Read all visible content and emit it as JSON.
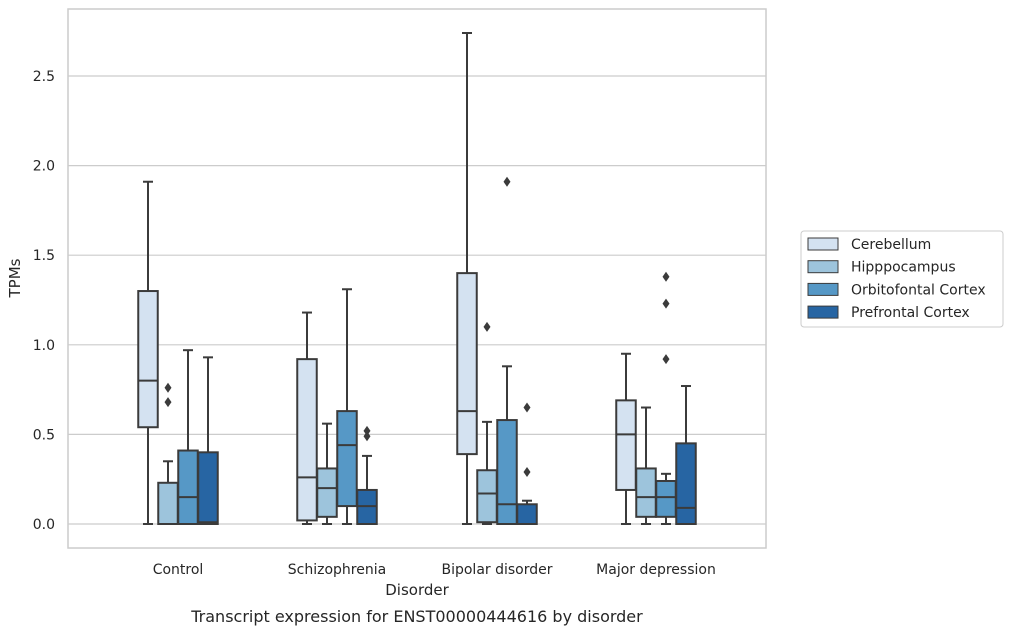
{
  "chart_data": {
    "type": "box",
    "xlabel": "Disorder",
    "ylabel": "TPMs",
    "caption": "Transcript expression for ENST00000444616 by disorder",
    "categories": [
      "Control",
      "Schizophrenia",
      "Bipolar disorder",
      "Major depression"
    ],
    "ylim": [
      -0.13,
      2.88
    ],
    "yticks": [
      0.0,
      0.5,
      1.0,
      1.5,
      2.0,
      2.5
    ],
    "ytick_labels": [
      "0.0",
      "0.5",
      "1.0",
      "1.5",
      "2.0",
      "2.5"
    ],
    "grid": true,
    "legend_position": "right",
    "series": [
      {
        "name": "Cerebellum",
        "color": "#d4e2f1",
        "boxes": [
          {
            "whislo": 0.0,
            "q1": 0.54,
            "med": 0.8,
            "q3": 1.3,
            "whishi": 1.91,
            "fliers": []
          },
          {
            "whislo": 0.0,
            "q1": 0.02,
            "med": 0.26,
            "q3": 0.92,
            "whishi": 1.18,
            "fliers": []
          },
          {
            "whislo": 0.0,
            "q1": 0.39,
            "med": 0.63,
            "q3": 1.4,
            "whishi": 2.74,
            "fliers": []
          },
          {
            "whislo": 0.0,
            "q1": 0.19,
            "med": 0.5,
            "q3": 0.69,
            "whishi": 0.95,
            "fliers": []
          }
        ]
      },
      {
        "name": "Hipppocampus",
        "color": "#9dc4dc",
        "boxes": [
          {
            "whislo": 0.0,
            "q1": 0.0,
            "med": 0.0,
            "q3": 0.23,
            "whishi": 0.35,
            "fliers": [
              0.68,
              0.76
            ]
          },
          {
            "whislo": 0.0,
            "q1": 0.04,
            "med": 0.2,
            "q3": 0.31,
            "whishi": 0.56,
            "fliers": []
          },
          {
            "whislo": 0.0,
            "q1": 0.01,
            "med": 0.17,
            "q3": 0.3,
            "whishi": 0.57,
            "fliers": [
              1.1
            ]
          },
          {
            "whislo": 0.0,
            "q1": 0.04,
            "med": 0.15,
            "q3": 0.31,
            "whishi": 0.65,
            "fliers": []
          }
        ]
      },
      {
        "name": "Orbitofontal Cortex",
        "color": "#5698c6",
        "boxes": [
          {
            "whislo": 0.0,
            "q1": 0.0,
            "med": 0.15,
            "q3": 0.41,
            "whishi": 0.97,
            "fliers": []
          },
          {
            "whislo": 0.0,
            "q1": 0.1,
            "med": 0.44,
            "q3": 0.63,
            "whishi": 1.31,
            "fliers": []
          },
          {
            "whislo": 0.0,
            "q1": 0.0,
            "med": 0.11,
            "q3": 0.58,
            "whishi": 0.88,
            "fliers": [
              1.91
            ]
          },
          {
            "whislo": 0.0,
            "q1": 0.04,
            "med": 0.15,
            "q3": 0.24,
            "whishi": 0.28,
            "fliers": [
              0.92,
              1.23,
              1.38
            ]
          }
        ]
      },
      {
        "name": "Prefrontal Cortex",
        "color": "#2765a3",
        "boxes": [
          {
            "whislo": 0.0,
            "q1": 0.0,
            "med": 0.01,
            "q3": 0.4,
            "whishi": 0.93,
            "fliers": []
          },
          {
            "whislo": 0.0,
            "q1": 0.0,
            "med": 0.1,
            "q3": 0.19,
            "whishi": 0.38,
            "fliers": [
              0.49,
              0.52
            ]
          },
          {
            "whislo": 0.0,
            "q1": 0.0,
            "med": 0.0,
            "q3": 0.11,
            "whishi": 0.13,
            "fliers": [
              0.29,
              0.65
            ]
          },
          {
            "whislo": 0.0,
            "q1": 0.0,
            "med": 0.09,
            "q3": 0.45,
            "whishi": 0.77,
            "fliers": []
          }
        ]
      }
    ]
  }
}
